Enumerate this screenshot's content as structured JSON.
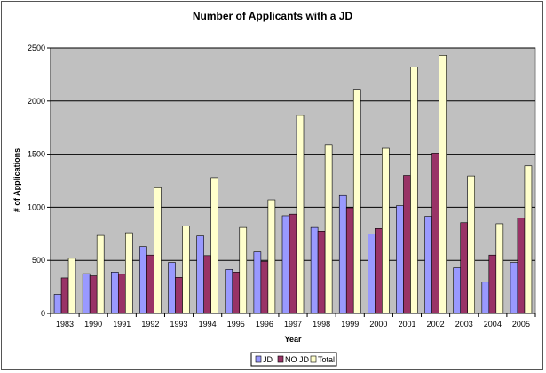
{
  "chart_data": {
    "type": "bar",
    "title": "Number of Applicants with a JD",
    "xlabel": "Year",
    "ylabel": "# of Applications",
    "ylim": [
      0,
      2500
    ],
    "yticks": [
      0,
      500,
      1000,
      1500,
      2000,
      2500
    ],
    "grid": true,
    "legend_position": "bottom",
    "categories": [
      "1983",
      "1990",
      "1991",
      "1992",
      "1993",
      "1994",
      "1995",
      "1996",
      "1997",
      "1998",
      "1999",
      "2000",
      "2001",
      "2002",
      "2003",
      "2004",
      "2005"
    ],
    "series": [
      {
        "name": "JD",
        "color": "#9999ff",
        "values": [
          180,
          375,
          390,
          630,
          480,
          730,
          415,
          580,
          920,
          810,
          1110,
          750,
          1015,
          915,
          430,
          295,
          480
        ]
      },
      {
        "name": "NO JD",
        "color": "#993366",
        "values": [
          335,
          355,
          370,
          550,
          340,
          545,
          390,
          490,
          935,
          775,
          995,
          800,
          1300,
          1510,
          855,
          550,
          900
        ]
      },
      {
        "name": "Total",
        "color": "#ffffcc",
        "values": [
          520,
          735,
          760,
          1185,
          825,
          1280,
          810,
          1070,
          1865,
          1590,
          2110,
          1555,
          2320,
          2430,
          1295,
          845,
          1390
        ]
      }
    ],
    "colors": {
      "plot_background": "#c0c0c0",
      "gridline": "#000000",
      "bar_outline": "#000000"
    }
  }
}
